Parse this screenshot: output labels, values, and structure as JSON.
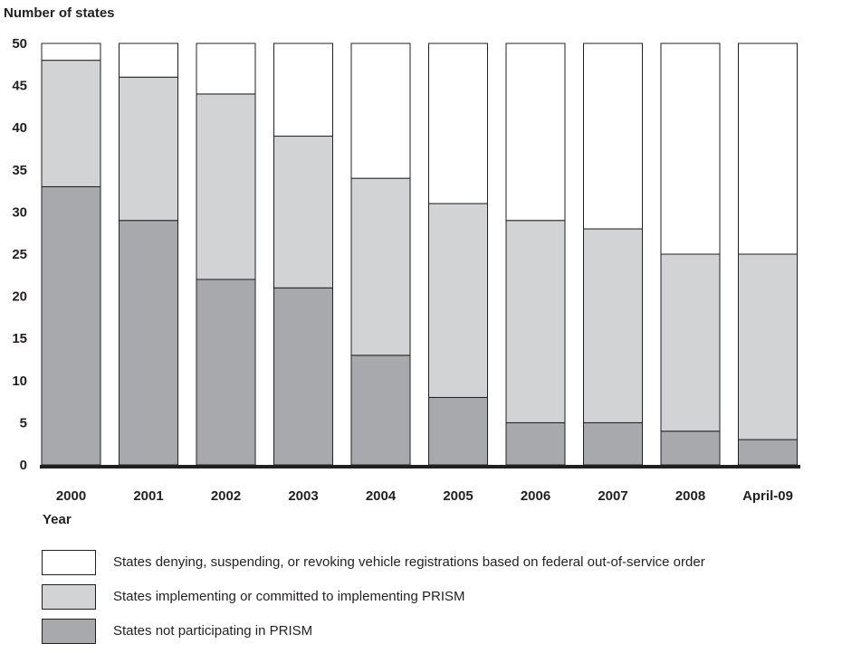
{
  "chart_data": {
    "type": "bar",
    "stacked": true,
    "ylabel": "Number of states",
    "xlabel": "Year",
    "ylim": [
      0,
      50
    ],
    "yticks": [
      0,
      5,
      10,
      15,
      20,
      25,
      30,
      35,
      40,
      45,
      50
    ],
    "grid": false,
    "legend_position": "bottom",
    "categories": [
      "2000",
      "2001",
      "2002",
      "2003",
      "2004",
      "2005",
      "2006",
      "2007",
      "2008",
      "April-09"
    ],
    "series": [
      {
        "name": "States not participating in PRISM",
        "color": "#a7a9ac",
        "values": [
          33,
          29,
          22,
          21,
          13,
          8,
          5,
          5,
          4,
          3
        ]
      },
      {
        "name": "States implementing or committed to implementing PRISM",
        "color": "#d1d3d4",
        "values": [
          15,
          17,
          22,
          18,
          21,
          23,
          24,
          23,
          21,
          22
        ]
      },
      {
        "name": "States denying, suspending, or revoking vehicle registrations based on federal out-of-service order",
        "color": "#ffffff",
        "values": [
          2,
          4,
          6,
          11,
          16,
          19,
          21,
          22,
          25,
          25
        ]
      }
    ]
  }
}
